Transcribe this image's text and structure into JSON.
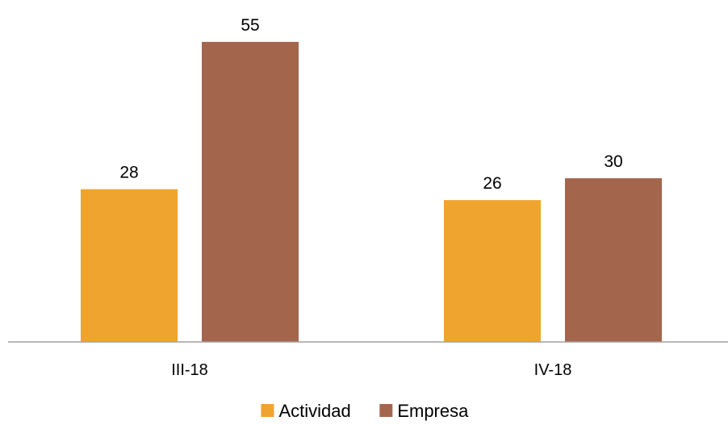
{
  "chart_data": {
    "type": "bar",
    "categories": [
      "III-18",
      "IV-18"
    ],
    "series": [
      {
        "name": "Actividad",
        "values": [
          28,
          26
        ],
        "color": "#EFA430"
      },
      {
        "name": "Empresa",
        "values": [
          55,
          30
        ],
        "color": "#A4654D"
      }
    ],
    "data_labels": true,
    "legend_position": "bottom",
    "grid": false,
    "ylim": [
      0,
      60
    ],
    "axis_color": "#A0A0A0"
  }
}
